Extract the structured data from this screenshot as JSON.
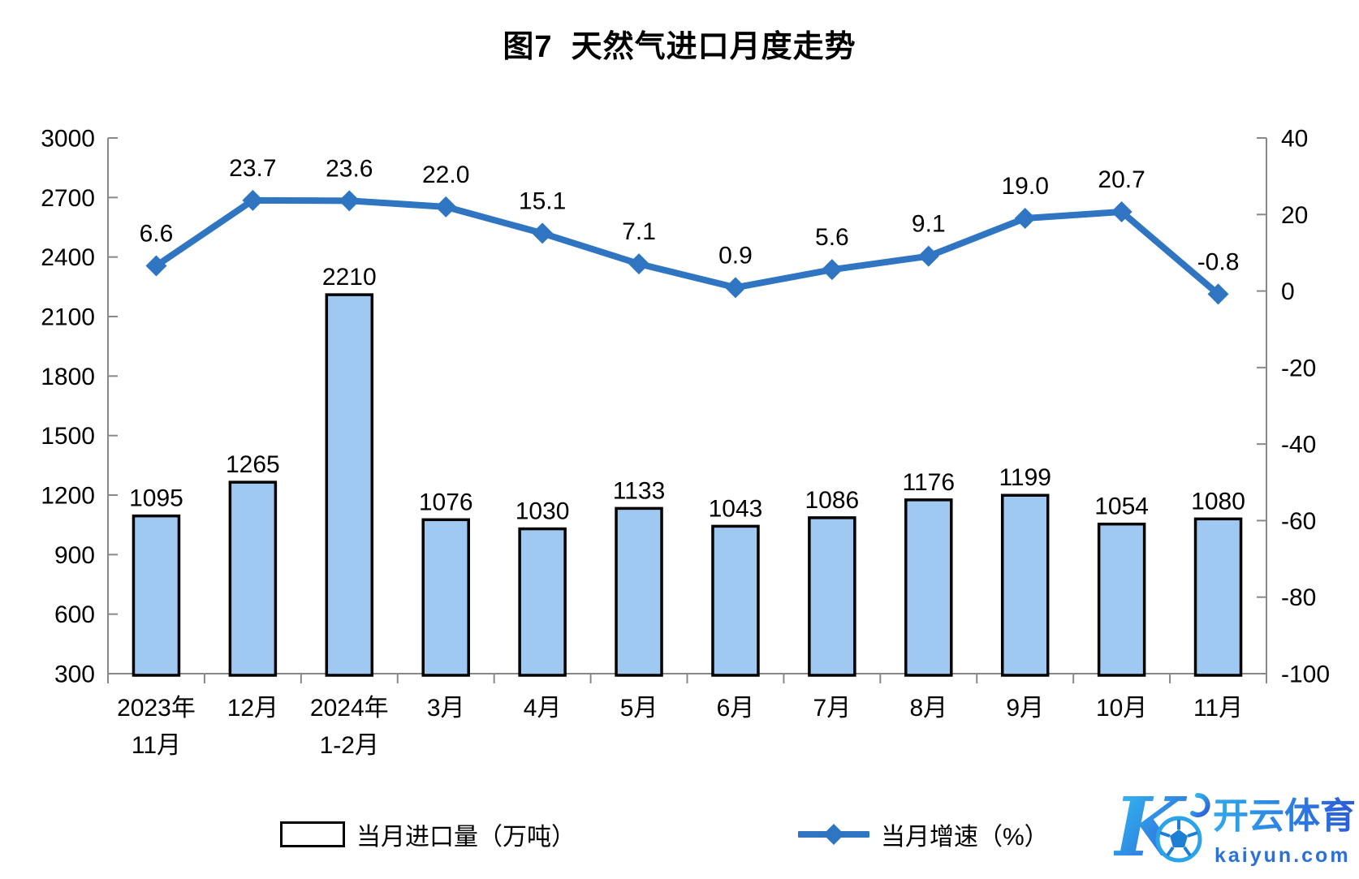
{
  "title": "图7  天然气进口月度走势",
  "colors": {
    "bar_fill": "#A0C9F2",
    "bar_border": "#000000",
    "line": "#2F75C2",
    "axis": "#888888",
    "label_text": "#000000",
    "watermark_cyan": "#33C5F0",
    "watermark_blue": "#2D55D8",
    "watermark_domain_blue": "#2B6FD9"
  },
  "chart_data": {
    "type": "bar+line",
    "title": "图7  天然气进口月度走势",
    "categories": [
      "2023年\n11月",
      "12月",
      "2024年\n1-2月",
      "3月",
      "4月",
      "5月",
      "6月",
      "7月",
      "8月",
      "9月",
      "10月",
      "11月"
    ],
    "series": [
      {
        "name": "当月进口量（万吨）",
        "type": "bar",
        "axis": "left",
        "values": [
          1095,
          1265,
          2210,
          1076,
          1030,
          1133,
          1043,
          1086,
          1176,
          1199,
          1054,
          1080
        ],
        "labels": [
          "1095",
          "1265",
          "2210",
          "1076",
          "1030",
          "1133",
          "1043",
          "1086",
          "1176",
          "1199",
          "1054",
          "1080"
        ]
      },
      {
        "name": "当月增速（%）",
        "type": "line",
        "axis": "right",
        "values": [
          6.6,
          23.7,
          23.6,
          22.0,
          15.1,
          7.1,
          0.9,
          5.6,
          9.1,
          19.0,
          20.7,
          -0.8
        ],
        "labels": [
          "6.6",
          "23.7",
          "23.6",
          "22.0",
          "15.1",
          "7.1",
          "0.9",
          "5.6",
          "9.1",
          "19.0",
          "20.7",
          "-0.8"
        ]
      }
    ],
    "left_axis": {
      "min": 300,
      "max": 3000,
      "step": 300,
      "tick_labels": [
        "300",
        "600",
        "900",
        "1200",
        "1500",
        "1800",
        "2100",
        "2400",
        "2700",
        "3000"
      ]
    },
    "right_axis": {
      "min": -100,
      "max": 40,
      "step": 20,
      "tick_labels": [
        "-100",
        "-80",
        "-60",
        "-40",
        "-20",
        "0",
        "20",
        "40"
      ]
    },
    "grid": false,
    "legend_position": "bottom"
  },
  "watermark": {
    "logo_letter": "K",
    "brand": "开云体育",
    "domain": "kaiyun.com"
  }
}
